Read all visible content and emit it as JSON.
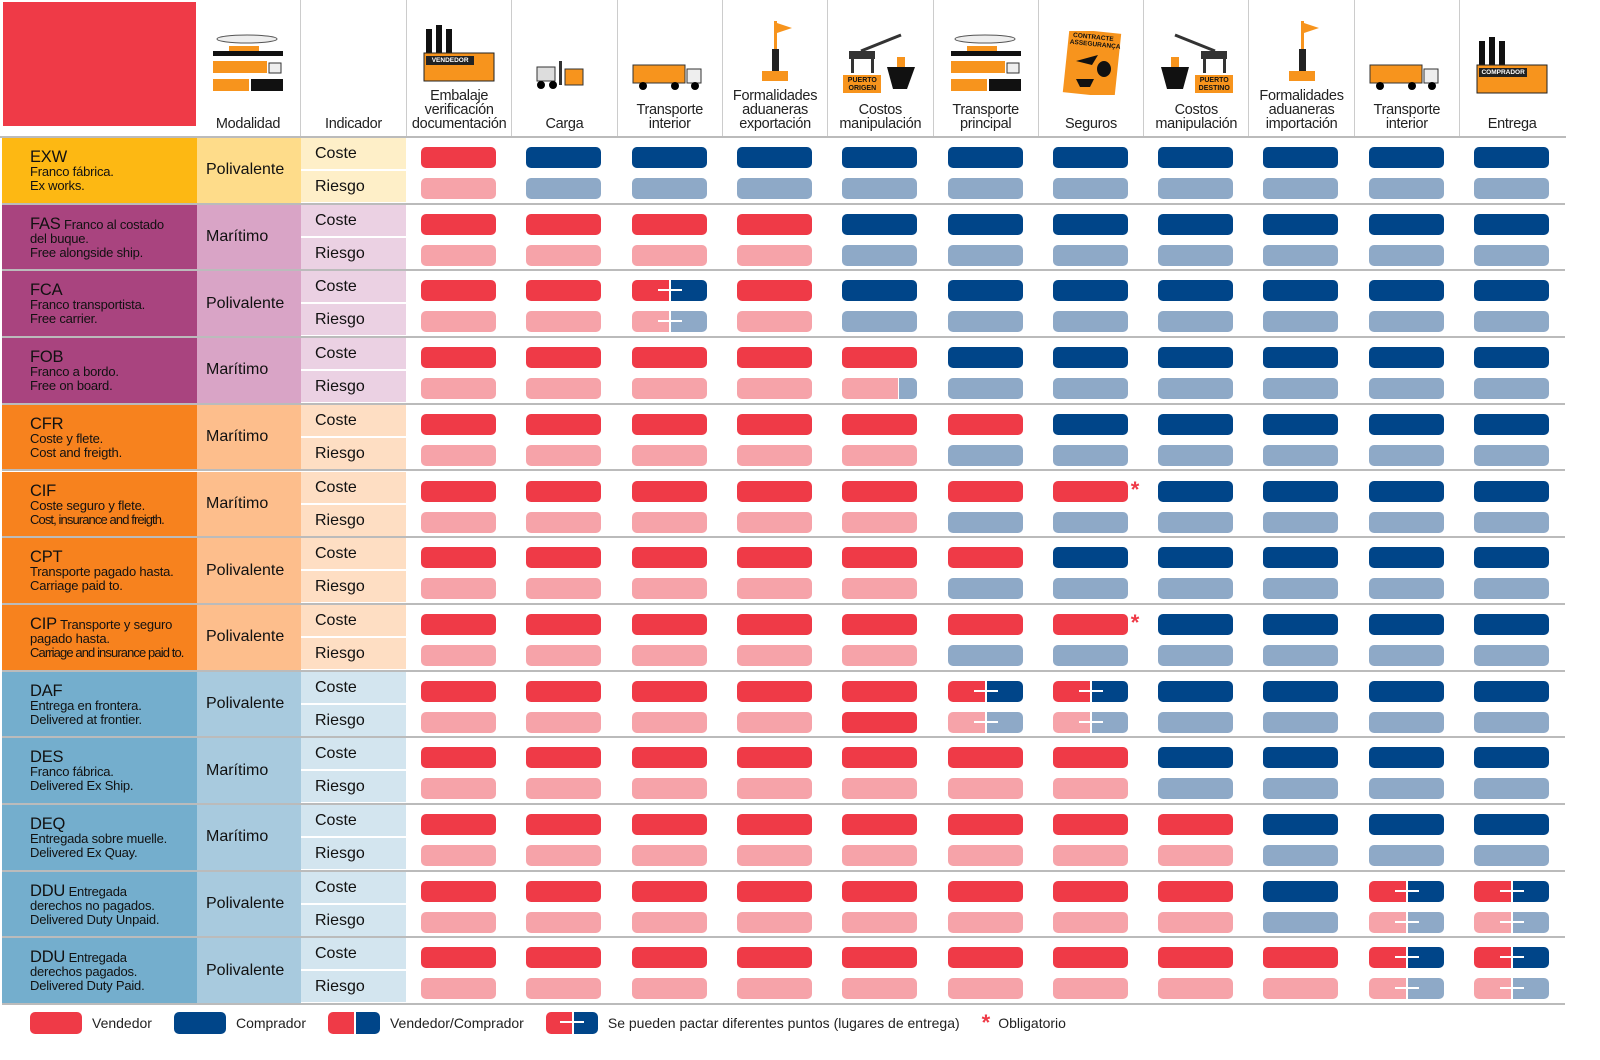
{
  "colors": {
    "seller": "#EF3A47",
    "seller_risk": "#F6A3A9",
    "buyer": "#004589",
    "buyer_risk": "#8EA9C7",
    "icon_orange": "#F7941D"
  },
  "header": {
    "modalidad": "Modalidad",
    "indicador": "Indicador",
    "columns": [
      {
        "label": "Embalaje verificación documentación",
        "icon": "factory-seller-icon",
        "icon_text": "VENDEDOR"
      },
      {
        "label": "Carga",
        "icon": "forklift-icon"
      },
      {
        "label": "Transporte interior",
        "icon": "truck-icon"
      },
      {
        "label": "Formalidades aduaneras exportación",
        "icon": "customs-barrier-flag-icon"
      },
      {
        "label": "Costos manipulación",
        "icon": "crane-ship-port-icon",
        "icon_text": "PUERTO ORIGEN"
      },
      {
        "label": "Transporte principal",
        "icon": "transport-modes-icon"
      },
      {
        "label": "Seguros",
        "icon": "insurance-contract-icon",
        "icon_text": "CONTRACTE ASSEGURANÇA"
      },
      {
        "label": "Costos manipulación",
        "icon": "crane-ship-port-icon",
        "icon_text": "PUERTO DESTINO"
      },
      {
        "label": "Formalidades aduaneras importación",
        "icon": "customs-barrier-flag-icon"
      },
      {
        "label": "Transporte interior",
        "icon": "truck-icon"
      },
      {
        "label": "Entrega",
        "icon": "factory-buyer-icon",
        "icon_text": "COMPRADOR"
      }
    ]
  },
  "indicator_labels": [
    "Coste",
    "Riesgo"
  ],
  "rows": [
    {
      "code": "EXW",
      "desc_inline": "",
      "desc": [
        "Franco fábrica.",
        "Ex works."
      ],
      "modalidad": "Polivalente",
      "group": "E",
      "coste": [
        "S",
        "B",
        "B",
        "B",
        "B",
        "B",
        "B",
        "B",
        "B",
        "B",
        "B"
      ],
      "riesgo": [
        "S",
        "B",
        "B",
        "B",
        "B",
        "B",
        "B",
        "B",
        "B",
        "B",
        "B"
      ]
    },
    {
      "code": "FAS",
      "desc_inline": "Franco al costado",
      "desc": [
        "del buque.",
        "Free alongside ship."
      ],
      "modalidad": "Marítimo",
      "group": "F",
      "coste": [
        "S",
        "S",
        "S",
        "S",
        "B",
        "B",
        "B",
        "B",
        "B",
        "B",
        "B"
      ],
      "riesgo": [
        "S",
        "S",
        "S",
        "S",
        "B",
        "B",
        "B",
        "B",
        "B",
        "B",
        "B"
      ]
    },
    {
      "code": "FCA",
      "desc_inline": "",
      "desc": [
        "Franco transportista.",
        "Free carrier."
      ],
      "modalidad": "Polivalente",
      "group": "F",
      "coste": [
        "S",
        "S",
        "P",
        "S",
        "B",
        "B",
        "B",
        "B",
        "B",
        "B",
        "B"
      ],
      "riesgo": [
        "S",
        "S",
        "P",
        "S",
        "B",
        "B",
        "B",
        "B",
        "B",
        "B",
        "B"
      ]
    },
    {
      "code": "FOB",
      "desc_inline": "",
      "desc": [
        "Franco a bordo.",
        "Free on board."
      ],
      "modalidad": "Marítimo",
      "group": "F",
      "coste": [
        "S",
        "S",
        "S",
        "S",
        "S",
        "B",
        "B",
        "B",
        "B",
        "B",
        "B"
      ],
      "riesgo": [
        "S",
        "S",
        "S",
        "S",
        "M",
        "B",
        "B",
        "B",
        "B",
        "B",
        "B"
      ]
    },
    {
      "code": "CFR",
      "desc_inline": "",
      "desc": [
        "Coste y flete.",
        "Cost and freigth."
      ],
      "modalidad": "Marítimo",
      "group": "C",
      "coste": [
        "S",
        "S",
        "S",
        "S",
        "S",
        "S",
        "B",
        "B",
        "B",
        "B",
        "B"
      ],
      "riesgo": [
        "S",
        "S",
        "S",
        "S",
        "S",
        "B",
        "B",
        "B",
        "B",
        "B",
        "B"
      ]
    },
    {
      "code": "CIF",
      "desc_inline": "",
      "desc": [
        "Coste seguro y flete.",
        "Cost, insurance and freigth."
      ],
      "modalidad": "Marítimo",
      "group": "C",
      "coste": [
        "S",
        "S",
        "S",
        "S",
        "S",
        "S",
        "S*",
        "B",
        "B",
        "B",
        "B"
      ],
      "riesgo": [
        "S",
        "S",
        "S",
        "S",
        "S",
        "B",
        "B",
        "B",
        "B",
        "B",
        "B"
      ]
    },
    {
      "code": "CPT",
      "desc_inline": "",
      "desc": [
        "Transporte pagado hasta.",
        "Carriage paid to."
      ],
      "modalidad": "Polivalente",
      "group": "C",
      "coste": [
        "S",
        "S",
        "S",
        "S",
        "S",
        "S",
        "B",
        "B",
        "B",
        "B",
        "B"
      ],
      "riesgo": [
        "S",
        "S",
        "S",
        "S",
        "S",
        "B",
        "B",
        "B",
        "B",
        "B",
        "B"
      ]
    },
    {
      "code": "CIP",
      "desc_inline": "Transporte y seguro",
      "desc": [
        "pagado hasta.",
        "Carriage and insurance paid to."
      ],
      "modalidad": "Polivalente",
      "group": "C",
      "coste": [
        "S",
        "S",
        "S",
        "S",
        "S",
        "S",
        "S*",
        "B",
        "B",
        "B",
        "B"
      ],
      "riesgo": [
        "S",
        "S",
        "S",
        "S",
        "S",
        "B",
        "B",
        "B",
        "B",
        "B",
        "B"
      ]
    },
    {
      "code": "DAF",
      "desc_inline": "",
      "desc": [
        "Entrega en frontera.",
        "Delivered at frontier."
      ],
      "modalidad": "Polivalente",
      "group": "D",
      "coste": [
        "S",
        "S",
        "S",
        "S",
        "S",
        "P",
        "P",
        "B",
        "B",
        "B",
        "B"
      ],
      "riesgo": [
        "S",
        "S",
        "S",
        "S",
        "R",
        "P",
        "P",
        "B",
        "B",
        "B",
        "B"
      ]
    },
    {
      "code": "DES",
      "desc_inline": "",
      "desc": [
        "Franco fábrica.",
        "Delivered Ex Ship."
      ],
      "modalidad": "Marítimo",
      "group": "D",
      "coste": [
        "S",
        "S",
        "S",
        "S",
        "S",
        "S",
        "S",
        "B",
        "B",
        "B",
        "B"
      ],
      "riesgo": [
        "S",
        "S",
        "S",
        "S",
        "S",
        "S",
        "S",
        "B",
        "B",
        "B",
        "B"
      ]
    },
    {
      "code": "DEQ",
      "desc_inline": "",
      "desc": [
        "Entregada sobre muelle.",
        "Delivered Ex Quay."
      ],
      "modalidad": "Marítimo",
      "group": "D",
      "coste": [
        "S",
        "S",
        "S",
        "S",
        "S",
        "S",
        "S",
        "S",
        "B",
        "B",
        "B"
      ],
      "riesgo": [
        "S",
        "S",
        "S",
        "S",
        "S",
        "S",
        "S",
        "S",
        "B",
        "B",
        "B"
      ]
    },
    {
      "code": "DDU",
      "desc_inline": "Entregada",
      "desc": [
        "derechos no pagados.",
        "Delivered Duty Unpaid."
      ],
      "modalidad": "Polivalente",
      "group": "D",
      "coste": [
        "S",
        "S",
        "S",
        "S",
        "S",
        "S",
        "S",
        "S",
        "B",
        "P",
        "P"
      ],
      "riesgo": [
        "S",
        "S",
        "S",
        "S",
        "S",
        "S",
        "S",
        "S",
        "B",
        "P",
        "P"
      ]
    },
    {
      "code": "DDU",
      "desc_inline": "Entregada",
      "desc": [
        "derechos pagados.",
        "Delivered Duty Paid."
      ],
      "modalidad": "Polivalente",
      "group": "D",
      "coste": [
        "S",
        "S",
        "S",
        "S",
        "S",
        "S",
        "S",
        "S",
        "S",
        "P",
        "P"
      ],
      "riesgo": [
        "S",
        "S",
        "S",
        "S",
        "S",
        "S",
        "S",
        "S",
        "S",
        "P",
        "P"
      ]
    }
  ],
  "group_colors": {
    "E": [
      "#FDB813",
      "#FEDC8A",
      "#FEEFC8"
    ],
    "F": [
      "#A9447F",
      "#D9A4C6",
      "#EBD1E3"
    ],
    "C": [
      "#F7821E",
      "#FDBE8C",
      "#FEDEC3"
    ],
    "D": [
      "#74AECD",
      "#A8CADE",
      "#D3E5EF"
    ]
  },
  "legend": [
    {
      "type": "S",
      "label": "Vendedor"
    },
    {
      "type": "B",
      "label": "Comprador"
    },
    {
      "type": "V",
      "label": "Vendedor/Comprador"
    },
    {
      "type": "P",
      "label": "Se pueden pactar diferentes puntos (lugares de entrega)"
    },
    {
      "type": "*",
      "label": "Obligatorio"
    }
  ]
}
